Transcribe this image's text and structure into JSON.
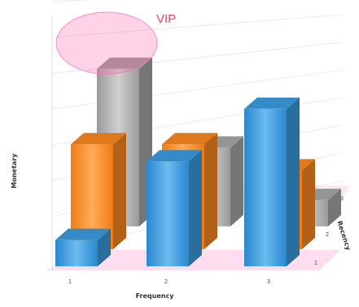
{
  "colors": {
    "front": "#3b9ee2",
    "middle": "#ff8a1f",
    "back": "#a9a9a9",
    "highlight": "#ff69b4",
    "annotation": "#e84a5f"
  },
  "chart_data": {
    "type": "bar",
    "title": "",
    "xlabel": "Frequency",
    "ylabel": "Monetary",
    "zlabel": "Recency",
    "categories": [
      "1",
      "2",
      "3"
    ],
    "depth_categories": [
      "1",
      "2",
      "3"
    ],
    "series": [
      {
        "values": [
          1,
          4,
          6
        ]
      },
      {
        "values": [
          4,
          4,
          3
        ]
      },
      {
        "values": [
          6,
          3,
          1
        ]
      }
    ],
    "ylim": [
      0,
      7
    ],
    "grid": true,
    "annotation": {
      "text": "VIP"
    }
  }
}
